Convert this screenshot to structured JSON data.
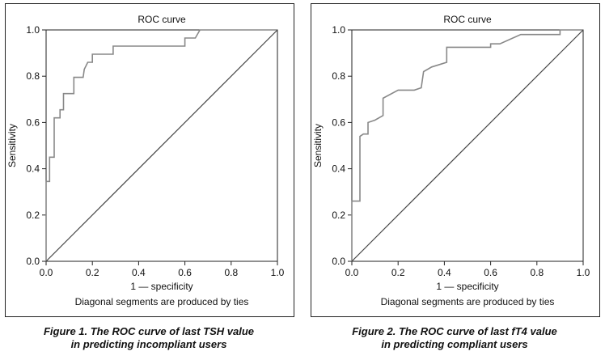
{
  "chart_data": [
    {
      "type": "line",
      "title": "ROC curve",
      "xlabel": "1 — specificity",
      "ylabel": "Sensitivity",
      "note": "Diagonal segments are produced by ties",
      "xlim": [
        0.0,
        1.0
      ],
      "ylim": [
        0.0,
        1.0
      ],
      "xticks": [
        "0.0",
        "0.2",
        "0.4",
        "0.6",
        "0.8",
        "1.0"
      ],
      "yticks": [
        "0.0",
        "0.2",
        "0.4",
        "0.6",
        "0.8",
        "1.0"
      ],
      "grid": false,
      "series": [
        {
          "color": "#888888",
          "points": [
            [
              0,
              0
            ],
            [
              0,
              0.345
            ],
            [
              0.015,
              0.345
            ],
            [
              0.015,
              0.45
            ],
            [
              0.035,
              0.45
            ],
            [
              0.035,
              0.62
            ],
            [
              0.06,
              0.62
            ],
            [
              0.06,
              0.655
            ],
            [
              0.075,
              0.655
            ],
            [
              0.075,
              0.725
            ],
            [
              0.12,
              0.725
            ],
            [
              0.12,
              0.795
            ],
            [
              0.16,
              0.795
            ],
            [
              0.165,
              0.83
            ],
            [
              0.18,
              0.86
            ],
            [
              0.2,
              0.86
            ],
            [
              0.2,
              0.895
            ],
            [
              0.29,
              0.895
            ],
            [
              0.29,
              0.93
            ],
            [
              0.6,
              0.93
            ],
            [
              0.6,
              0.965
            ],
            [
              0.645,
              0.965
            ],
            [
              0.665,
              1.0
            ],
            [
              1.0,
              1.0
            ]
          ]
        },
        {
          "color": "#444444",
          "points": [
            [
              0,
              0
            ],
            [
              1,
              1
            ]
          ]
        }
      ],
      "figure_caption_line1": "Figure 1.  The ROC curve of last TSH value",
      "figure_caption_line2": "in predicting incompliant users"
    },
    {
      "type": "line",
      "title": "ROC curve",
      "xlabel": "1 — specificity",
      "ylabel": "Sensitivity",
      "note": "Diagonal segments are produced by ties",
      "xlim": [
        0.0,
        1.0
      ],
      "ylim": [
        0.0,
        1.0
      ],
      "xticks": [
        "0.0",
        "0.2",
        "0.4",
        "0.6",
        "0.8",
        "1.0"
      ],
      "yticks": [
        "0.0",
        "0.2",
        "0.4",
        "0.6",
        "0.8",
        "1.0"
      ],
      "grid": false,
      "series": [
        {
          "color": "#888888",
          "points": [
            [
              0,
              0
            ],
            [
              0,
              0.26
            ],
            [
              0.035,
              0.26
            ],
            [
              0.035,
              0.54
            ],
            [
              0.05,
              0.55
            ],
            [
              0.07,
              0.55
            ],
            [
              0.07,
              0.6
            ],
            [
              0.1,
              0.61
            ],
            [
              0.135,
              0.63
            ],
            [
              0.135,
              0.705
            ],
            [
              0.2,
              0.74
            ],
            [
              0.27,
              0.74
            ],
            [
              0.3,
              0.75
            ],
            [
              0.31,
              0.82
            ],
            [
              0.345,
              0.84
            ],
            [
              0.41,
              0.86
            ],
            [
              0.41,
              0.925
            ],
            [
              0.6,
              0.925
            ],
            [
              0.6,
              0.94
            ],
            [
              0.64,
              0.94
            ],
            [
              0.73,
              0.98
            ],
            [
              0.9,
              0.98
            ],
            [
              0.9,
              1.0
            ],
            [
              1.0,
              1.0
            ]
          ]
        },
        {
          "color": "#444444",
          "points": [
            [
              0,
              0
            ],
            [
              1,
              1
            ]
          ]
        }
      ],
      "figure_caption_line1": "Figure 2.  The ROC curve of last fT4 value",
      "figure_caption_line2": "in predicting compliant users"
    }
  ]
}
